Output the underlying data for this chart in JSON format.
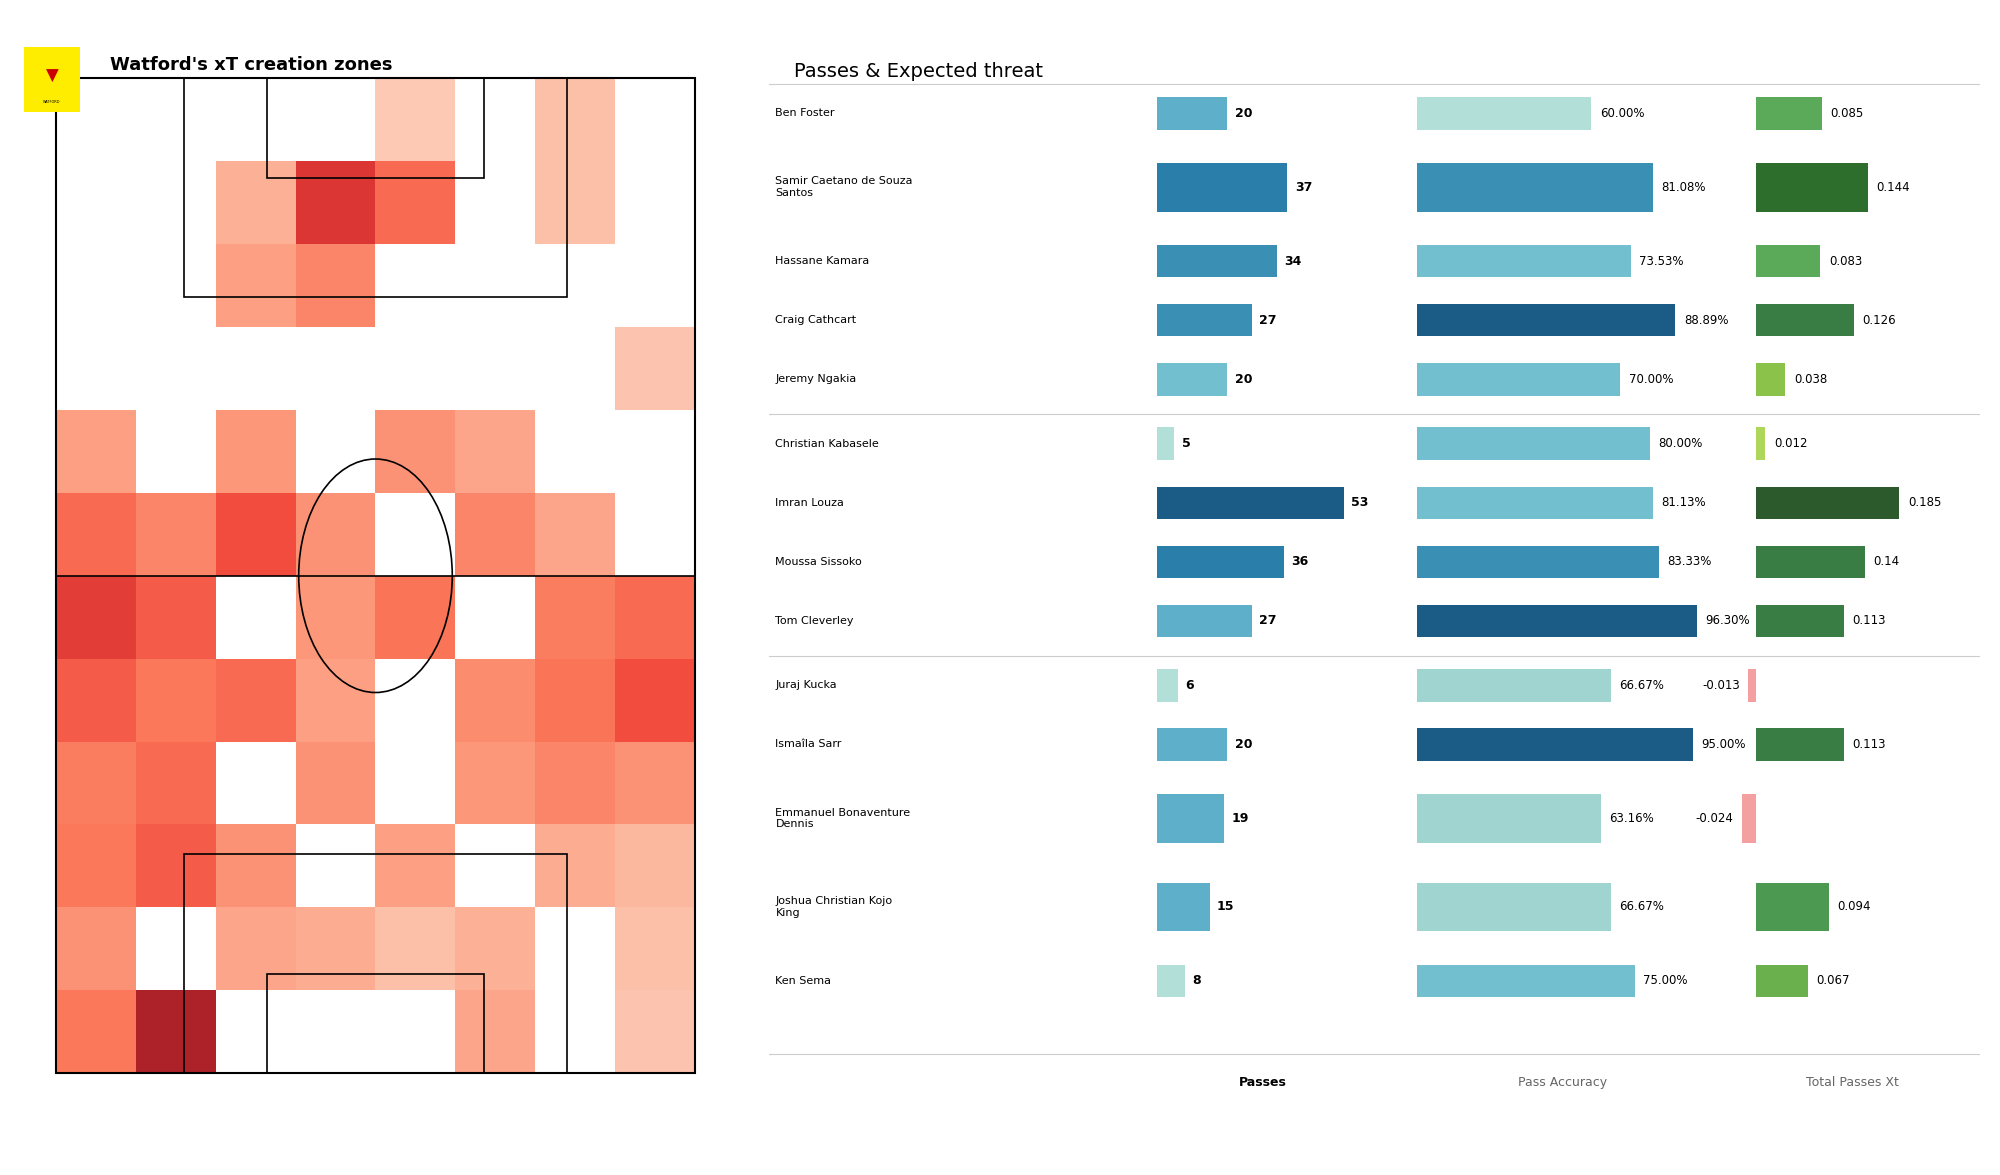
{
  "title_left": "Watford's xT creation zones",
  "title_right": "Passes & Expected threat",
  "players": [
    "Ben Foster",
    "Samir Caetano de Souza\nSantos",
    "Hassane Kamara",
    "Craig Cathcart",
    "Jeremy Ngakia",
    "Christian Kabasele",
    "Imran Louza",
    "Moussa Sissoko",
    "Tom Cleverley",
    "Juraj Kucka",
    "Ismaîla Sarr",
    "Emmanuel Bonaventure\nDennis",
    "Joshua Christian Kojo\nKing",
    "Ken Sema"
  ],
  "passes": [
    20,
    37,
    34,
    27,
    20,
    5,
    53,
    36,
    27,
    6,
    20,
    19,
    15,
    8
  ],
  "pass_accuracy": [
    60.0,
    81.08,
    73.53,
    88.89,
    70.0,
    80.0,
    81.13,
    83.33,
    96.3,
    66.67,
    95.0,
    63.16,
    66.67,
    75.0
  ],
  "total_passes_xt": [
    0.085,
    0.144,
    0.083,
    0.126,
    0.038,
    0.012,
    0.185,
    0.14,
    0.113,
    -0.013,
    0.113,
    -0.024,
    0.094,
    0.067
  ],
  "passes_bar_colors": [
    "#5dafca",
    "#2a7eaa",
    "#3a8fb5",
    "#3a8fb5",
    "#72bfcf",
    "#b2e0d8",
    "#1a5c85",
    "#2a7eaa",
    "#5dafca",
    "#b2e0d8",
    "#5dafca",
    "#5dafca",
    "#5dafca",
    "#b2e0d8"
  ],
  "accuracy_bar_colors": [
    "#b2e0d8",
    "#3a8fb5",
    "#72bfcf",
    "#1a5c85",
    "#72bfcf",
    "#72bfcf",
    "#72bfcf",
    "#3a8fb5",
    "#1a5c85",
    "#a0d4d0",
    "#1a5c85",
    "#a0d4d0",
    "#a0d4d0",
    "#72bfcf"
  ],
  "xt_bar_colors": [
    "#5aaa5a",
    "#2d6e2d",
    "#5aaa5a",
    "#3a7d44",
    "#8bc34a",
    "#aed65a",
    "#2d5a2d",
    "#3a7d44",
    "#3a7d44",
    "#f4a0a0",
    "#3a7d44",
    "#f4a0a0",
    "#4c9a52",
    "#6ab04c"
  ],
  "separator_rows": [
    5,
    9
  ],
  "background_color": "#ffffff",
  "col_labels": [
    "Passes",
    "Pass Accuracy",
    "Total Passes Xt"
  ],
  "max_passes": 60,
  "heatmap": [
    [
      0,
      0,
      0,
      0,
      0.08,
      0,
      0.12,
      0
    ],
    [
      0,
      0,
      0.18,
      0.65,
      0.45,
      0,
      0.12,
      0
    ],
    [
      0,
      0,
      0.25,
      0.35,
      0,
      0,
      0,
      0
    ],
    [
      0,
      0,
      0,
      0,
      0,
      0,
      0,
      0.1
    ],
    [
      0.25,
      0,
      0.28,
      0,
      0.3,
      0.22,
      0,
      0
    ],
    [
      0.45,
      0.35,
      0.55,
      0.3,
      0,
      0.35,
      0.22,
      0
    ],
    [
      0.62,
      0.5,
      0,
      0.28,
      0.42,
      0,
      0.38,
      0.45
    ],
    [
      0.5,
      0.4,
      0.45,
      0.25,
      0,
      0.32,
      0.42,
      0.55
    ],
    [
      0.38,
      0.45,
      0,
      0.3,
      0,
      0.28,
      0.35,
      0.3
    ],
    [
      0.4,
      0.5,
      0.3,
      0,
      0.25,
      0,
      0.2,
      0.15
    ],
    [
      0.3,
      0,
      0.22,
      0.2,
      0.12,
      0.18,
      0,
      0.12
    ],
    [
      0.4,
      0.85,
      0,
      0,
      0,
      0.22,
      0,
      0.1
    ]
  ]
}
